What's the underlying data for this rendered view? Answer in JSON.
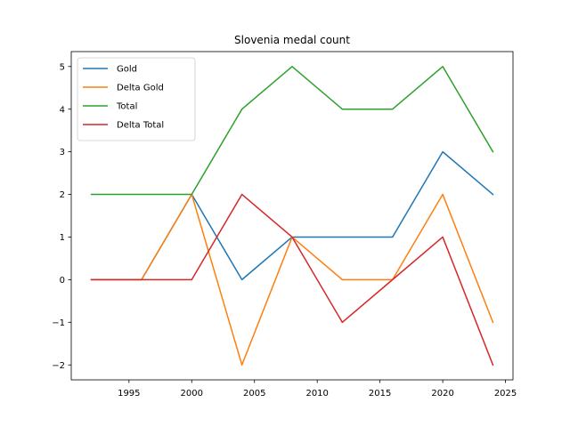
{
  "chart_data": {
    "type": "line",
    "title": "Slovenia medal count",
    "xlabel": "",
    "ylabel": "",
    "x": [
      1992,
      1996,
      2000,
      2004,
      2008,
      2012,
      2016,
      2020,
      2024
    ],
    "xlim": [
      1990.4,
      2025.6
    ],
    "ylim": [
      -2.35,
      5.35
    ],
    "xticks": [
      1995,
      2000,
      2005,
      2010,
      2015,
      2020,
      2025
    ],
    "yticks": [
      -2,
      -1,
      0,
      1,
      2,
      3,
      4,
      5
    ],
    "grid": false,
    "legend_position": "top-left",
    "series": [
      {
        "name": "Gold",
        "color": "#1f77b4",
        "values": [
          0,
          0,
          2,
          0,
          1,
          1,
          1,
          3,
          2
        ]
      },
      {
        "name": "Delta Gold",
        "color": "#ff7f0e",
        "values": [
          0,
          0,
          2,
          -2,
          1,
          0,
          0,
          2,
          -1
        ]
      },
      {
        "name": "Total",
        "color": "#2ca02c",
        "values": [
          2,
          2,
          2,
          4,
          5,
          4,
          4,
          5,
          3
        ]
      },
      {
        "name": "Delta Total",
        "color": "#d62728",
        "values": [
          0,
          0,
          0,
          2,
          1,
          -1,
          0,
          1,
          -2
        ]
      }
    ]
  }
}
